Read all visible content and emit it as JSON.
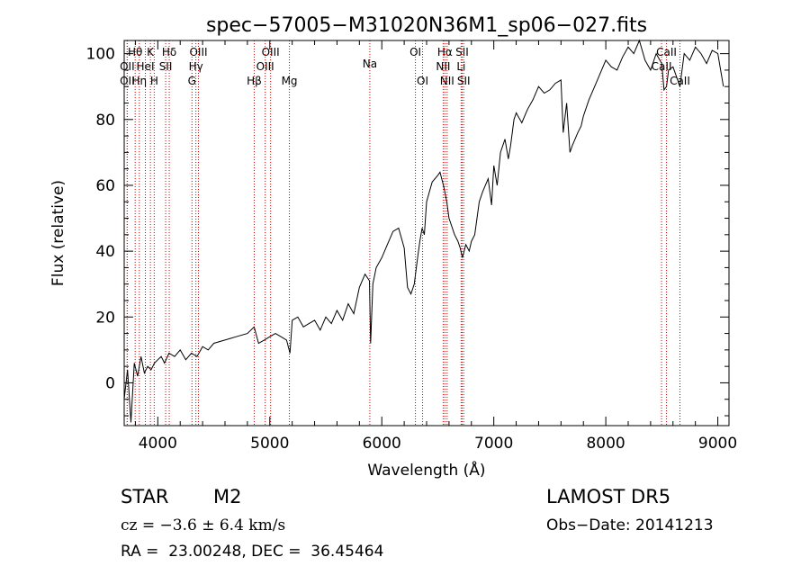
{
  "chart_data": {
    "type": "line",
    "title": "spec−57005−M31020N36M1_sp06−027.fits",
    "xlabel": "Wavelength (Å)",
    "ylabel": "Flux (relative)",
    "xlim": [
      3700,
      9100
    ],
    "ylim": [
      -13,
      104
    ],
    "xticks": [
      4000,
      5000,
      6000,
      7000,
      8000,
      9000
    ],
    "xtick_labels": [
      "4000",
      "5000",
      "6000",
      "7000",
      "8000",
      "9000"
    ],
    "yticks": [
      0,
      20,
      40,
      60,
      80,
      100
    ],
    "ytick_labels": [
      "0",
      "20",
      "40",
      "60",
      "80",
      "100"
    ],
    "grid": false,
    "line_color": "#000000",
    "marker_color": "#cc0000",
    "series": [
      {
        "x": [
          3700,
          3730,
          3760,
          3790,
          3820,
          3850,
          3880,
          3910,
          3940,
          3970,
          4000,
          4030,
          4060,
          4100,
          4150,
          4200,
          4250,
          4300,
          4350,
          4400,
          4450,
          4500,
          4600,
          4700,
          4800,
          4860,
          4900,
          4950,
          5000,
          5050,
          5100,
          5150,
          5180,
          5200,
          5250,
          5300,
          5350,
          5400,
          5450,
          5500,
          5550,
          5600,
          5650,
          5700,
          5750,
          5800,
          5850,
          5890,
          5900,
          5920,
          5950,
          6000,
          6050,
          6100,
          6150,
          6200,
          6230,
          6260,
          6290,
          6320,
          6340,
          6360,
          6380,
          6400,
          6450,
          6500,
          6520,
          6550,
          6563,
          6580,
          6600,
          6650,
          6680,
          6700,
          6720,
          6750,
          6780,
          6800,
          6830,
          6850,
          6870,
          6900,
          6950,
          6980,
          7000,
          7030,
          7060,
          7100,
          7130,
          7150,
          7180,
          7200,
          7250,
          7300,
          7350,
          7400,
          7450,
          7500,
          7550,
          7600,
          7620,
          7650,
          7680,
          7700,
          7750,
          7780,
          7800,
          7850,
          7900,
          7950,
          8000,
          8050,
          8100,
          8150,
          8200,
          8250,
          8300,
          8350,
          8400,
          8450,
          8500,
          8520,
          8542,
          8560,
          8600,
          8662,
          8700,
          8750,
          8800,
          8850,
          8900,
          8950,
          9000,
          9050
        ],
        "y": [
          -5,
          4,
          -12,
          6,
          2,
          8,
          3,
          5,
          4,
          6,
          7,
          8,
          6,
          9,
          8,
          10,
          7,
          9,
          8,
          11,
          10,
          12,
          13,
          14,
          15,
          17,
          12,
          13,
          14,
          15,
          14,
          13,
          9,
          19,
          20,
          17,
          18,
          19,
          16,
          20,
          18,
          22,
          19,
          24,
          21,
          29,
          33,
          31,
          12,
          30,
          35,
          38,
          42,
          46,
          47,
          41,
          29,
          27,
          30,
          38,
          43,
          47,
          45,
          55,
          61,
          63,
          64,
          60,
          58,
          55,
          50,
          45,
          43,
          41,
          38,
          42,
          40,
          43,
          45,
          50,
          55,
          58,
          62,
          54,
          66,
          60,
          70,
          74,
          68,
          72,
          80,
          82,
          79,
          83,
          86,
          90,
          88,
          89,
          91,
          92,
          76,
          85,
          70,
          72,
          76,
          78,
          81,
          86,
          90,
          94,
          98,
          96,
          95,
          99,
          102,
          100,
          104,
          98,
          95,
          100,
          97,
          89,
          90,
          95,
          96,
          90,
          100,
          98,
          102,
          100,
          97,
          101,
          100,
          90
        ]
      }
    ],
    "line_markers": [
      {
        "label": "Hθ",
        "x": 3798,
        "row": 1
      },
      {
        "label": "K",
        "x": 3934,
        "row": 1
      },
      {
        "label": "Hδ",
        "x": 4102,
        "row": 1
      },
      {
        "label": "OIII",
        "x": 4363,
        "row": 1
      },
      {
        "label": "OIII",
        "x": 5007,
        "row": 1
      },
      {
        "label": "OI",
        "x": 6300,
        "row": 1
      },
      {
        "label": "Hα",
        "x": 6563,
        "row": 1
      },
      {
        "label": "SII",
        "x": 6717,
        "row": 1
      },
      {
        "label": "CaII",
        "x": 8542,
        "row": 1
      },
      {
        "label": "OII",
        "x": 3727,
        "row": 2
      },
      {
        "label": "HeI",
        "x": 3889,
        "row": 2
      },
      {
        "label": "SII",
        "x": 4070,
        "row": 2
      },
      {
        "label": "Hγ",
        "x": 4340,
        "row": 2
      },
      {
        "label": "OIII",
        "x": 4959,
        "row": 2
      },
      {
        "label": "NII",
        "x": 6548,
        "row": 2
      },
      {
        "label": "Li",
        "x": 6708,
        "row": 2
      },
      {
        "label": "CaII",
        "x": 8498,
        "row": 2
      },
      {
        "label": "OII",
        "x": 3727,
        "row": 3
      },
      {
        "label": "Hη",
        "x": 3835,
        "row": 3
      },
      {
        "label": "H",
        "x": 3968,
        "row": 3
      },
      {
        "label": "G",
        "x": 4305,
        "row": 3
      },
      {
        "label": "Hβ",
        "x": 4861,
        "row": 3
      },
      {
        "label": "Mg",
        "x": 5175,
        "row": 3
      },
      {
        "label": "Na",
        "x": 5893,
        "row": 1.8
      },
      {
        "label": "OI",
        "x": 6364,
        "row": 3
      },
      {
        "label": "NII",
        "x": 6583,
        "row": 3
      },
      {
        "label": "SII",
        "x": 6731,
        "row": 3
      },
      {
        "label": "CaII",
        "x": 8662,
        "row": 3
      }
    ]
  },
  "info": {
    "class": "STAR",
    "subclass": "M2",
    "survey": "LAMOST DR5",
    "cz": "cz = −3.6 ± 6.4 km/s",
    "obs_date": "Obs−Date: 20141213",
    "radec": "RA =  23.00248, DEC =  36.45464"
  }
}
